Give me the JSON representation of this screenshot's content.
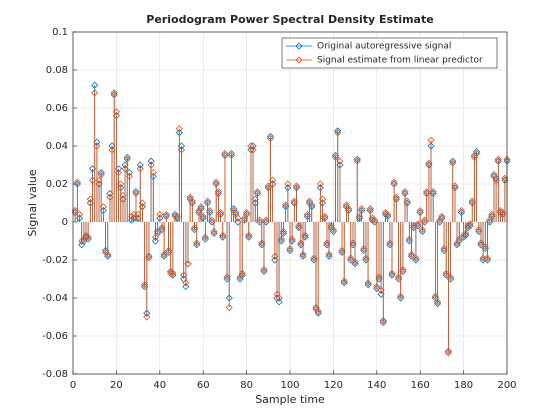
{
  "chart_data": {
    "type": "stem",
    "title": "Periodogram Power Spectral Density Estimate",
    "x_label": "Sample time",
    "y_label": "Signal value",
    "x": [
      1,
      2,
      3,
      4,
      5,
      6,
      7,
      8,
      9,
      10,
      11,
      12,
      13,
      14,
      15,
      16,
      17,
      18,
      19,
      20,
      21,
      22,
      23,
      24,
      25,
      26,
      27,
      28,
      29,
      30,
      31,
      32,
      33,
      34,
      35,
      36,
      37,
      38,
      39,
      40,
      41,
      42,
      43,
      44,
      45,
      46,
      47,
      48,
      49,
      50,
      51,
      52,
      53,
      54,
      55,
      56,
      57,
      58,
      59,
      60,
      61,
      62,
      63,
      64,
      65,
      66,
      67,
      68,
      69,
      70,
      71,
      72,
      73,
      74,
      75,
      76,
      77,
      78,
      79,
      80,
      81,
      82,
      83,
      84,
      85,
      86,
      87,
      88,
      89,
      90,
      91,
      92,
      93,
      94,
      95,
      96,
      97,
      98,
      99,
      100,
      101,
      102,
      103,
      104,
      105,
      106,
      107,
      108,
      109,
      110,
      111,
      112,
      113,
      114,
      115,
      116,
      117,
      118,
      119,
      120,
      121,
      122,
      123,
      124,
      125,
      126,
      127,
      128,
      129,
      130,
      131,
      132,
      133,
      134,
      135,
      136,
      137,
      138,
      139,
      140,
      141,
      142,
      143,
      144,
      145,
      146,
      147,
      148,
      149,
      150,
      151,
      152,
      153,
      154,
      155,
      156,
      157,
      158,
      159,
      160,
      161,
      162,
      163,
      164,
      165,
      166,
      167,
      168,
      169,
      170,
      171,
      172,
      173,
      174,
      175,
      176,
      177,
      178,
      179,
      180,
      181,
      182,
      183,
      184,
      185,
      186,
      187,
      188,
      189,
      190,
      191,
      192,
      193,
      194,
      195,
      196,
      197,
      198,
      199,
      200
    ],
    "series": [
      {
        "name": "Original autoregressive signal",
        "color": "#0072BD",
        "values": [
          0.005,
          0.02,
          0.002,
          -0.012,
          -0.01,
          -0.008,
          -0.009,
          0.01,
          0.028,
          0.072,
          0.042,
          0.02,
          0.026,
          0.006,
          -0.015,
          -0.018,
          0.015,
          0.04,
          0.067,
          0.056,
          0.028,
          0.018,
          0.012,
          0.03,
          0.034,
          0.026,
          0.001,
          0.002,
          0.016,
          0.002,
          0.03,
          0.008,
          -0.034,
          -0.048,
          -0.018,
          0.032,
          0.024,
          -0.01,
          -0.005,
          0.002,
          -0.004,
          -0.018,
          0.003,
          -0.016,
          -0.026,
          -0.028,
          0.004,
          0.002,
          0.047,
          0.04,
          -0.03,
          -0.034,
          -0.022,
          0.012,
          0.01,
          -0.004,
          -0.012,
          0.005,
          0.007,
          0.002,
          -0.009,
          0.01,
          0.005,
          0.0,
          -0.006,
          0.02,
          0.015,
          0.004,
          -0.008,
          0.035,
          -0.03,
          -0.04,
          0.036,
          0.007,
          0.005,
          0.0,
          -0.03,
          -0.028,
          0.001,
          0.004,
          -0.008,
          0.038,
          0.04,
          0.01,
          0.015,
          0.0,
          -0.012,
          -0.026,
          0.0,
          0.018,
          0.045,
          0.02,
          -0.02,
          -0.04,
          -0.042,
          -0.01,
          -0.006,
          0.008,
          0.018,
          -0.015,
          -0.01,
          0.01,
          0.018,
          -0.003,
          -0.012,
          -0.018,
          -0.008,
          0.003,
          0.01,
          0.008,
          -0.02,
          -0.045,
          -0.048,
          0.018,
          0.01,
          0.002,
          -0.012,
          -0.018,
          -0.003,
          -0.005,
          0.035,
          0.048,
          0.03,
          -0.016,
          -0.032,
          0.008,
          0.006,
          -0.02,
          -0.012,
          -0.022,
          0.033,
          0.002,
          0.006,
          -0.015,
          -0.02,
          -0.033,
          0.006,
          0.001,
          0.0,
          -0.035,
          -0.03,
          -0.038,
          -0.052,
          0.004,
          0.003,
          -0.012,
          -0.028,
          0.02,
          0.012,
          -0.03,
          -0.04,
          -0.026,
          0.015,
          0.01,
          -0.01,
          -0.018,
          -0.003,
          -0.02,
          -0.002,
          0.005,
          -0.005,
          0.0,
          0.015,
          0.03,
          0.04,
          0.015,
          -0.04,
          -0.043,
          0.0,
          0.002,
          -0.015,
          -0.028,
          -0.068,
          -0.03,
          0.032,
          0.018,
          -0.012,
          -0.01,
          0.005,
          -0.008,
          -0.007,
          -0.003,
          -0.002,
          0.01,
          0.035,
          0.037,
          -0.005,
          -0.012,
          -0.02,
          -0.014,
          -0.02,
          0.0,
          0.003,
          0.024,
          0.023,
          0.032,
          0.005,
          0.004,
          0.022,
          0.032
        ]
      },
      {
        "name": "Signal estimate from linear predictor",
        "color": "#D95319",
        "values": [
          0.006,
          0.021,
          0.004,
          -0.01,
          -0.009,
          -0.007,
          -0.008,
          0.012,
          0.022,
          0.068,
          0.04,
          0.022,
          0.025,
          0.008,
          -0.016,
          -0.017,
          0.013,
          0.038,
          0.068,
          0.058,
          0.026,
          0.02,
          0.014,
          0.028,
          0.033,
          0.024,
          0.003,
          0.004,
          0.015,
          0.004,
          0.028,
          0.01,
          -0.033,
          -0.05,
          -0.019,
          0.03,
          0.026,
          -0.008,
          -0.006,
          0.004,
          -0.003,
          -0.017,
          0.004,
          -0.015,
          -0.027,
          -0.027,
          0.003,
          0.003,
          0.049,
          0.038,
          -0.028,
          -0.032,
          -0.022,
          0.013,
          0.011,
          -0.003,
          -0.011,
          0.006,
          0.008,
          0.003,
          -0.008,
          0.011,
          0.006,
          0.001,
          -0.005,
          0.021,
          0.016,
          0.005,
          -0.007,
          0.036,
          -0.029,
          -0.045,
          0.035,
          0.006,
          0.004,
          0.002,
          -0.029,
          -0.027,
          0.002,
          0.005,
          -0.007,
          0.04,
          0.038,
          0.012,
          0.016,
          0.001,
          -0.011,
          -0.025,
          0.001,
          0.019,
          0.044,
          0.022,
          -0.018,
          -0.038,
          -0.04,
          -0.009,
          -0.005,
          0.009,
          0.02,
          -0.014,
          -0.009,
          0.011,
          0.019,
          -0.002,
          -0.011,
          -0.017,
          -0.007,
          0.004,
          0.011,
          0.009,
          -0.019,
          -0.046,
          -0.047,
          0.02,
          0.012,
          0.003,
          -0.011,
          -0.017,
          -0.002,
          -0.004,
          0.034,
          0.047,
          0.032,
          -0.015,
          -0.031,
          0.009,
          0.007,
          -0.019,
          -0.011,
          -0.021,
          0.032,
          0.003,
          0.007,
          -0.014,
          -0.019,
          -0.032,
          0.007,
          0.002,
          0.001,
          -0.034,
          -0.029,
          -0.036,
          -0.053,
          0.005,
          0.004,
          -0.011,
          -0.027,
          0.021,
          0.013,
          -0.029,
          -0.039,
          -0.025,
          0.016,
          0.011,
          -0.009,
          -0.017,
          -0.002,
          -0.019,
          -0.001,
          0.006,
          -0.004,
          0.001,
          0.016,
          0.031,
          0.043,
          0.016,
          -0.039,
          -0.042,
          0.001,
          0.003,
          -0.014,
          -0.027,
          -0.069,
          -0.029,
          0.031,
          0.019,
          -0.011,
          -0.009,
          0.006,
          -0.007,
          -0.006,
          -0.002,
          -0.001,
          0.011,
          0.034,
          0.036,
          -0.004,
          -0.011,
          -0.019,
          -0.013,
          -0.019,
          0.001,
          0.004,
          0.025,
          0.022,
          0.033,
          0.006,
          0.005,
          0.023,
          0.033
        ]
      }
    ],
    "xlim": [
      0,
      200
    ],
    "xticks": [
      0,
      20,
      40,
      60,
      80,
      100,
      120,
      140,
      160,
      180,
      200
    ],
    "ylim": [
      -0.08,
      0.1
    ],
    "yticks": [
      -0.08,
      -0.06,
      -0.04,
      -0.02,
      0,
      0.02,
      0.04,
      0.06,
      0.08,
      0.1
    ],
    "grid": true,
    "legend": "northeast"
  }
}
